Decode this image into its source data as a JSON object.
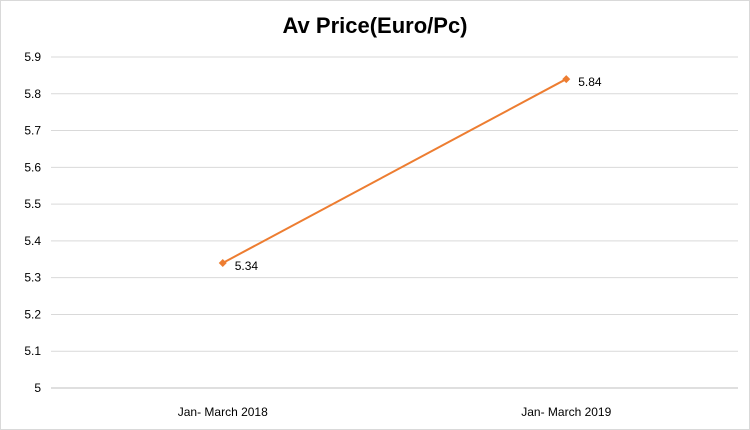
{
  "chart_data": {
    "type": "line",
    "title": "Av Price(Euro/Pc)",
    "categories": [
      "Jan- March 2018",
      "Jan- March 2019"
    ],
    "series": [
      {
        "values": [
          5.34,
          5.84
        ],
        "color": "#ed7d31"
      }
    ],
    "data_labels": [
      "5.34",
      "5.84"
    ],
    "ylim": [
      5,
      5.9
    ],
    "yticks": [
      "5",
      "5.1",
      "5.2",
      "5.3",
      "5.4",
      "5.5",
      "5.6",
      "5.7",
      "5.8",
      "5.9"
    ],
    "grid": true,
    "gridline_color": "#d9d9d9",
    "legend": "none"
  }
}
